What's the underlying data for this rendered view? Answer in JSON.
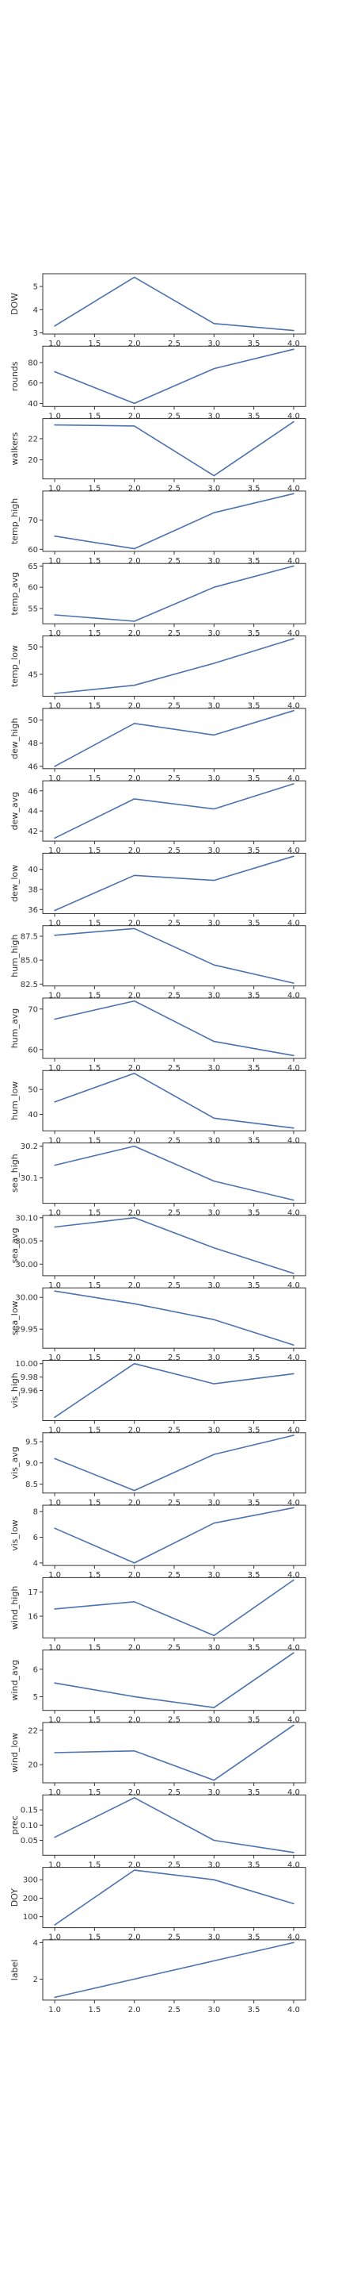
{
  "chart_data": [
    {
      "type": "line",
      "ylabel": "DOW",
      "x": [
        1,
        2,
        3,
        4
      ],
      "values": [
        3.3,
        5.4,
        3.4,
        3.1
      ],
      "ylim": [
        2.95,
        5.55
      ],
      "yticks": [
        3,
        4,
        5
      ]
    },
    {
      "type": "line",
      "ylabel": "rounds",
      "x": [
        1,
        2,
        3,
        4
      ],
      "values": [
        71,
        40,
        74,
        93
      ],
      "ylim": [
        37,
        96
      ],
      "yticks": [
        40,
        60,
        80
      ]
    },
    {
      "type": "line",
      "ylabel": "walkers",
      "x": [
        1,
        2,
        3,
        4
      ],
      "values": [
        23.3,
        23.2,
        18.5,
        23.6
      ],
      "ylim": [
        18.2,
        23.9
      ],
      "yticks": [
        20,
        22
      ]
    },
    {
      "type": "line",
      "ylabel": "temp_high",
      "x": [
        1,
        2,
        3,
        4
      ],
      "values": [
        64.5,
        60.2,
        72.5,
        79
      ],
      "ylim": [
        59.3,
        79.9
      ],
      "yticks": [
        60,
        70
      ]
    },
    {
      "type": "line",
      "ylabel": "temp_avg",
      "x": [
        1,
        2,
        3,
        4
      ],
      "values": [
        53.5,
        52,
        60,
        65
      ],
      "ylim": [
        51.4,
        65.6
      ],
      "yticks": [
        55,
        60,
        65
      ]
    },
    {
      "type": "line",
      "ylabel": "temp_low",
      "x": [
        1,
        2,
        3,
        4
      ],
      "values": [
        41.5,
        43,
        47,
        51.5
      ],
      "ylim": [
        41,
        52
      ],
      "yticks": [
        45,
        50
      ]
    },
    {
      "type": "line",
      "ylabel": "dew_high",
      "x": [
        1,
        2,
        3,
        4
      ],
      "values": [
        46,
        49.7,
        48.7,
        50.8
      ],
      "ylim": [
        45.8,
        51
      ],
      "yticks": [
        46,
        48,
        50
      ]
    },
    {
      "type": "line",
      "ylabel": "dew_avg",
      "x": [
        1,
        2,
        3,
        4
      ],
      "values": [
        41.3,
        45.2,
        44.2,
        46.7
      ],
      "ylim": [
        41,
        47
      ],
      "yticks": [
        42,
        44,
        46
      ]
    },
    {
      "type": "line",
      "ylabel": "dew_low",
      "x": [
        1,
        2,
        3,
        4
      ],
      "values": [
        35.9,
        39.4,
        38.9,
        41.3
      ],
      "ylim": [
        35.6,
        41.6
      ],
      "yticks": [
        36,
        38,
        40
      ]
    },
    {
      "type": "line",
      "ylabel": "hum_high",
      "x": [
        1,
        2,
        3,
        4
      ],
      "values": [
        87.6,
        88.3,
        84.5,
        82.6
      ],
      "ylim": [
        82.3,
        88.6
      ],
      "yticks": [
        82.5,
        85.0,
        87.5
      ]
    },
    {
      "type": "line",
      "ylabel": "hum_avg",
      "x": [
        1,
        2,
        3,
        4
      ],
      "values": [
        67.5,
        72,
        62,
        58.5
      ],
      "ylim": [
        57.8,
        72.7
      ],
      "yticks": [
        60,
        70
      ]
    },
    {
      "type": "line",
      "ylabel": "hum_low",
      "x": [
        1,
        2,
        3,
        4
      ],
      "values": [
        45,
        56.5,
        38.5,
        34.5
      ],
      "ylim": [
        33.4,
        57.6
      ],
      "yticks": [
        40,
        50
      ]
    },
    {
      "type": "line",
      "ylabel": "sea_high",
      "x": [
        1,
        2,
        3,
        4
      ],
      "values": [
        30.14,
        30.2,
        30.09,
        30.03
      ],
      "ylim": [
        30.02,
        30.21
      ],
      "yticks": [
        30.1,
        30.2
      ]
    },
    {
      "type": "line",
      "ylabel": "sea_avg",
      "x": [
        1,
        2,
        3,
        4
      ],
      "values": [
        30.08,
        30.1,
        30.035,
        29.98
      ],
      "ylim": [
        29.975,
        30.105
      ],
      "yticks": [
        30.0,
        30.05,
        30.1
      ]
    },
    {
      "type": "line",
      "ylabel": "sea_low",
      "x": [
        1,
        2,
        3,
        4
      ],
      "values": [
        30.01,
        29.99,
        29.965,
        29.925
      ],
      "ylim": [
        29.92,
        30.015
      ],
      "yticks": [
        29.95,
        30.0
      ]
    },
    {
      "type": "line",
      "ylabel": "vis_high",
      "x": [
        1,
        2,
        3,
        4
      ],
      "values": [
        9.92,
        10,
        9.97,
        9.985
      ],
      "ylim": [
        9.915,
        10.005
      ],
      "yticks": [
        9.96,
        9.98,
        10.0
      ]
    },
    {
      "type": "line",
      "ylabel": "vis_avg",
      "x": [
        1,
        2,
        3,
        4
      ],
      "values": [
        9.1,
        8.35,
        9.2,
        9.65
      ],
      "ylim": [
        8.29,
        9.71
      ],
      "yticks": [
        8.5,
        9.0,
        9.5
      ]
    },
    {
      "type": "line",
      "ylabel": "vis_low",
      "x": [
        1,
        2,
        3,
        4
      ],
      "values": [
        6.7,
        4,
        7.1,
        8.3
      ],
      "ylim": [
        3.8,
        8.5
      ],
      "yticks": [
        4,
        6,
        8
      ]
    },
    {
      "type": "line",
      "ylabel": "wind_high",
      "x": [
        1,
        2,
        3,
        4
      ],
      "values": [
        16.3,
        16.6,
        15.2,
        17.5
      ],
      "ylim": [
        15.1,
        17.6
      ],
      "yticks": [
        16,
        17
      ]
    },
    {
      "type": "line",
      "ylabel": "wind_avg",
      "x": [
        1,
        2,
        3,
        4
      ],
      "values": [
        5.5,
        5,
        4.6,
        6.6
      ],
      "ylim": [
        4.5,
        6.7
      ],
      "yticks": [
        5,
        6
      ]
    },
    {
      "type": "line",
      "ylabel": "wind_low",
      "x": [
        1,
        2,
        3,
        4
      ],
      "values": [
        20.7,
        20.8,
        19.1,
        22.3
      ],
      "ylim": [
        18.95,
        22.45
      ],
      "yticks": [
        20,
        22
      ]
    },
    {
      "type": "line",
      "ylabel": "prec",
      "x": [
        1,
        2,
        3,
        4
      ],
      "values": [
        0.06,
        0.19,
        0.05,
        0.01
      ],
      "ylim": [
        0.001,
        0.199
      ],
      "yticks": [
        0.05,
        0.1,
        0.15
      ]
    },
    {
      "type": "line",
      "ylabel": "DOY",
      "x": [
        1,
        2,
        3,
        4
      ],
      "values": [
        55,
        352,
        300,
        170
      ],
      "ylim": [
        40,
        367
      ],
      "yticks": [
        100,
        200,
        300
      ]
    },
    {
      "type": "line",
      "ylabel": "label",
      "x": [
        1,
        2,
        3,
        4
      ],
      "values": [
        1,
        2,
        3,
        4
      ],
      "ylim": [
        0.85,
        4.15
      ],
      "yticks": [
        2,
        4
      ]
    }
  ],
  "x_axis": {
    "ticks": [
      "1.0",
      "1.5",
      "2.0",
      "2.5",
      "3.0",
      "3.5",
      "4.0"
    ],
    "tick_values": [
      1.0,
      1.5,
      2.0,
      2.5,
      3.0,
      3.5,
      4.0
    ],
    "xlim": [
      0.85,
      4.15
    ]
  },
  "style": {
    "line_color": "#4c72b0",
    "axis_color": "#333333",
    "background": "#ffffff"
  }
}
